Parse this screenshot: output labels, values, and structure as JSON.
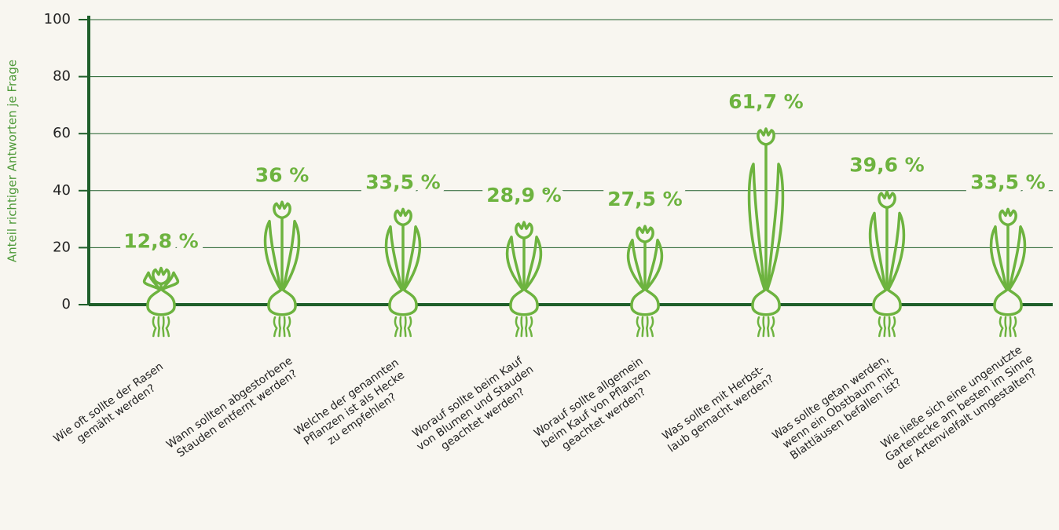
{
  "chart_data": {
    "type": "bar",
    "y_label": "Anteil richtiger Antworten je Frage",
    "categories": [
      [
        "Wie oft sollte der Rasen",
        "gemäht werden?"
      ],
      [
        "Wann sollten abgestorbene",
        "Stauden entfernt werden?"
      ],
      [
        "Welche der genannten",
        "Pflanzen ist als Hecke",
        "zu empfehlen?"
      ],
      [
        "Worauf sollte beim Kauf",
        "von Blumen und Stauden",
        "geachtet werden?"
      ],
      [
        "Worauf sollte allgemein",
        "beim Kauf von Pflanzen",
        "geachtet werden?"
      ],
      [
        "Was sollte mit Herbst-",
        "laub gemacht werden?"
      ],
      [
        "Was sollte getan werden,",
        "wenn ein Obstbaum mit",
        "Blattläusen befallen ist?"
      ],
      [
        "Wie ließe sich eine ungenutzte",
        "Gartenecke am besten im Sinne",
        "der Artenvielfalt umgestalten?"
      ]
    ],
    "values": [
      12.8,
      36,
      33.5,
      28.9,
      27.5,
      61.7,
      39.6,
      33.5
    ],
    "value_labels": [
      "12,8 %",
      "36 %",
      "33,5 %",
      "28,9 %",
      "27,5 %",
      "61,7 %",
      "39,6 %",
      "33,5 %"
    ],
    "color": "#6db33f",
    "ylim": [
      0,
      100
    ],
    "yticks": [
      0,
      20,
      40,
      60,
      80,
      100
    ],
    "grid": true
  }
}
